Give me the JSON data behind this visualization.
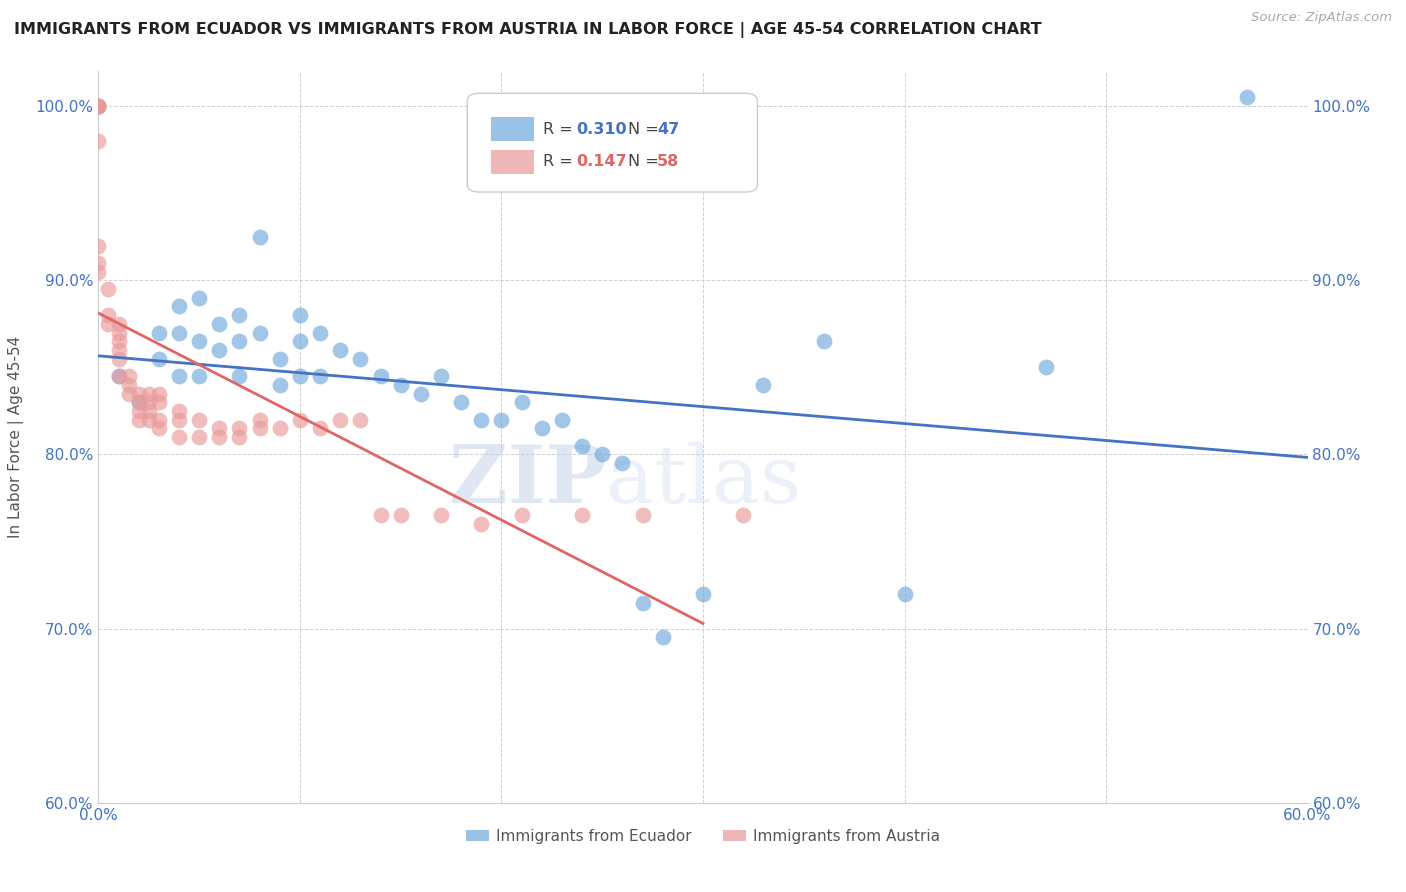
{
  "title": "IMMIGRANTS FROM ECUADOR VS IMMIGRANTS FROM AUSTRIA IN LABOR FORCE | AGE 45-54 CORRELATION CHART",
  "source": "Source: ZipAtlas.com",
  "ylabel": "In Labor Force | Age 45-54",
  "watermark_zip": "ZIP",
  "watermark_atlas": "atlas",
  "xlim": [
    0.0,
    0.6
  ],
  "ylim": [
    0.6,
    1.02
  ],
  "xticks": [
    0.0,
    0.1,
    0.2,
    0.3,
    0.4,
    0.5,
    0.6
  ],
  "xticklabels": [
    "0.0%",
    "",
    "",
    "",
    "",
    "",
    "60.0%"
  ],
  "yticks": [
    0.6,
    0.7,
    0.8,
    0.9,
    1.0
  ],
  "yticklabels": [
    "60.0%",
    "70.0%",
    "80.0%",
    "90.0%",
    "100.0%"
  ],
  "ecuador_color": "#6fa8dc",
  "austria_color": "#ea9999",
  "trendline_color_ecuador": "#4472c4",
  "trendline_color_austria": "#e06666",
  "axis_color": "#4472c4",
  "ecuador_x": [
    0.01,
    0.02,
    0.03,
    0.03,
    0.04,
    0.04,
    0.04,
    0.05,
    0.05,
    0.05,
    0.06,
    0.06,
    0.07,
    0.07,
    0.07,
    0.08,
    0.08,
    0.09,
    0.09,
    0.1,
    0.1,
    0.1,
    0.11,
    0.11,
    0.12,
    0.13,
    0.14,
    0.15,
    0.16,
    0.17,
    0.18,
    0.19,
    0.2,
    0.21,
    0.22,
    0.23,
    0.24,
    0.25,
    0.26,
    0.27,
    0.28,
    0.3,
    0.33,
    0.36,
    0.4,
    0.47,
    0.57
  ],
  "ecuador_y": [
    0.845,
    0.83,
    0.87,
    0.855,
    0.885,
    0.87,
    0.845,
    0.89,
    0.865,
    0.845,
    0.875,
    0.86,
    0.88,
    0.865,
    0.845,
    0.925,
    0.87,
    0.855,
    0.84,
    0.88,
    0.865,
    0.845,
    0.87,
    0.845,
    0.86,
    0.855,
    0.845,
    0.84,
    0.835,
    0.845,
    0.83,
    0.82,
    0.82,
    0.83,
    0.815,
    0.82,
    0.805,
    0.8,
    0.795,
    0.715,
    0.695,
    0.72,
    0.84,
    0.865,
    0.72,
    0.85,
    1.005
  ],
  "austria_x": [
    0.0,
    0.0,
    0.0,
    0.0,
    0.0,
    0.0,
    0.0,
    0.0,
    0.0,
    0.0,
    0.005,
    0.005,
    0.005,
    0.01,
    0.01,
    0.01,
    0.01,
    0.01,
    0.01,
    0.015,
    0.015,
    0.015,
    0.02,
    0.02,
    0.02,
    0.02,
    0.025,
    0.025,
    0.025,
    0.025,
    0.03,
    0.03,
    0.03,
    0.03,
    0.04,
    0.04,
    0.04,
    0.05,
    0.05,
    0.06,
    0.06,
    0.07,
    0.07,
    0.08,
    0.08,
    0.09,
    0.1,
    0.11,
    0.12,
    0.13,
    0.14,
    0.15,
    0.17,
    0.19,
    0.21,
    0.24,
    0.27,
    0.32
  ],
  "austria_y": [
    1.0,
    1.0,
    1.0,
    1.0,
    1.0,
    1.0,
    0.98,
    0.92,
    0.91,
    0.905,
    0.895,
    0.88,
    0.875,
    0.875,
    0.87,
    0.865,
    0.86,
    0.855,
    0.845,
    0.845,
    0.84,
    0.835,
    0.835,
    0.83,
    0.825,
    0.82,
    0.835,
    0.83,
    0.825,
    0.82,
    0.835,
    0.83,
    0.82,
    0.815,
    0.825,
    0.82,
    0.81,
    0.82,
    0.81,
    0.815,
    0.81,
    0.815,
    0.81,
    0.82,
    0.815,
    0.815,
    0.82,
    0.815,
    0.82,
    0.82,
    0.765,
    0.765,
    0.765,
    0.76,
    0.765,
    0.765,
    0.765,
    0.765
  ]
}
